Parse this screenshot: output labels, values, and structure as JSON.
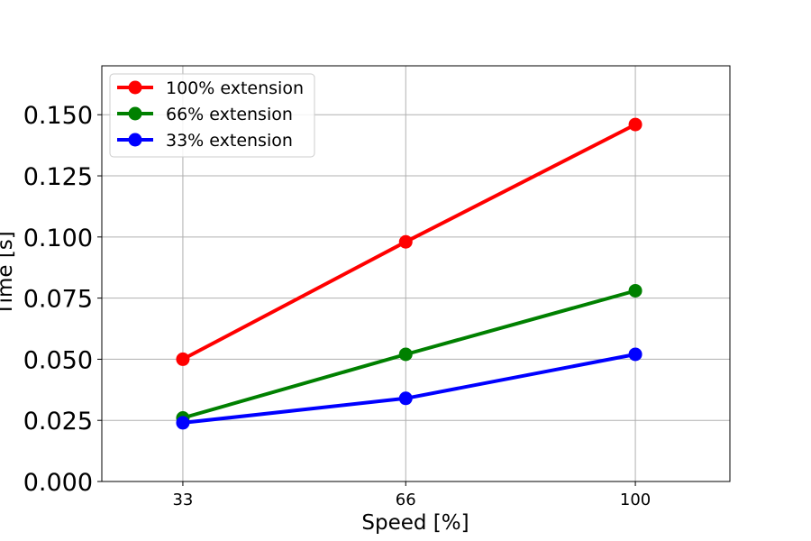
{
  "chart_data": {
    "type": "line",
    "title": "",
    "xlabel": "Speed [%]",
    "ylabel": "Time [s]",
    "x": [
      33,
      66,
      100
    ],
    "x_tick_labels": [
      "33",
      "66",
      "100"
    ],
    "xlim": [
      21,
      114
    ],
    "ylim": [
      0.0,
      0.17
    ],
    "y_ticks": [
      0.0,
      0.025,
      0.05,
      0.075,
      0.1,
      0.125,
      0.15
    ],
    "y_tick_labels": [
      "0.000",
      "0.025",
      "0.050",
      "0.075",
      "0.100",
      "0.125",
      "0.150"
    ],
    "grid": true,
    "legend_position": "top-left",
    "series": [
      {
        "name": "100% extension",
        "color": "#ff0000",
        "values": [
          0.05,
          0.098,
          0.146
        ]
      },
      {
        "name": "66% extension",
        "color": "#008000",
        "values": [
          0.026,
          0.052,
          0.078
        ]
      },
      {
        "name": "33% extension",
        "color": "#0000ff",
        "values": [
          0.024,
          0.034,
          0.052
        ]
      }
    ]
  }
}
